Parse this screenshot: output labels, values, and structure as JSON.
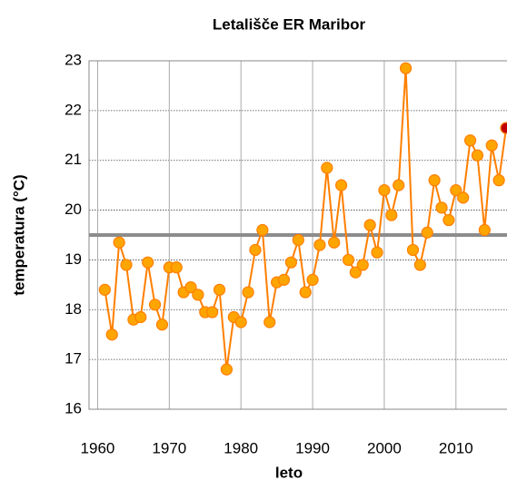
{
  "chart_data": {
    "type": "line",
    "title": "Letališče ER Maribor",
    "x_label": "leto",
    "y_label": "temperatura (°C)",
    "x": [
      1961,
      1962,
      1963,
      1964,
      1965,
      1966,
      1967,
      1968,
      1969,
      1970,
      1971,
      1972,
      1973,
      1974,
      1975,
      1976,
      1977,
      1978,
      1979,
      1980,
      1981,
      1982,
      1983,
      1984,
      1985,
      1986,
      1987,
      1988,
      1989,
      1990,
      1991,
      1992,
      1993,
      1994,
      1995,
      1996,
      1997,
      1998,
      1999,
      2000,
      2001,
      2002,
      2003,
      2004,
      2005,
      2006,
      2007,
      2008,
      2009,
      2010,
      2011,
      2012,
      2013,
      2014,
      2015,
      2016,
      2017
    ],
    "series": [
      {
        "color": "#ff7f00",
        "marker_color": "#ffa500",
        "highlight_color": "#c00000",
        "values": [
          18.4,
          17.5,
          19.35,
          18.9,
          17.8,
          17.85,
          18.95,
          18.1,
          17.7,
          18.85,
          18.85,
          18.35,
          18.45,
          18.3,
          17.95,
          17.95,
          18.4,
          16.8,
          17.85,
          17.75,
          18.35,
          19.2,
          19.6,
          17.75,
          18.55,
          18.6,
          18.95,
          19.4,
          18.35,
          18.6,
          19.3,
          20.85,
          19.35,
          20.5,
          19.0,
          18.75,
          18.9,
          19.7,
          19.15,
          20.4,
          19.9,
          20.5,
          22.85,
          19.2,
          18.9,
          19.55,
          20.6,
          20.05,
          19.8,
          20.4,
          20.25,
          21.4,
          21.1,
          19.6,
          21.3,
          20.6,
          21.65
        ]
      }
    ],
    "reference_line": {
      "value": 19.5,
      "color": "#8c8c8c"
    },
    "xlim": [
      1958.8,
      2017
    ],
    "xticks": [
      1960,
      1970,
      1980,
      1990,
      2000,
      2010
    ],
    "ylim": [
      16,
      23
    ],
    "yticks": [
      16,
      17,
      18,
      19,
      20,
      21,
      22,
      23
    ],
    "grid": true
  }
}
